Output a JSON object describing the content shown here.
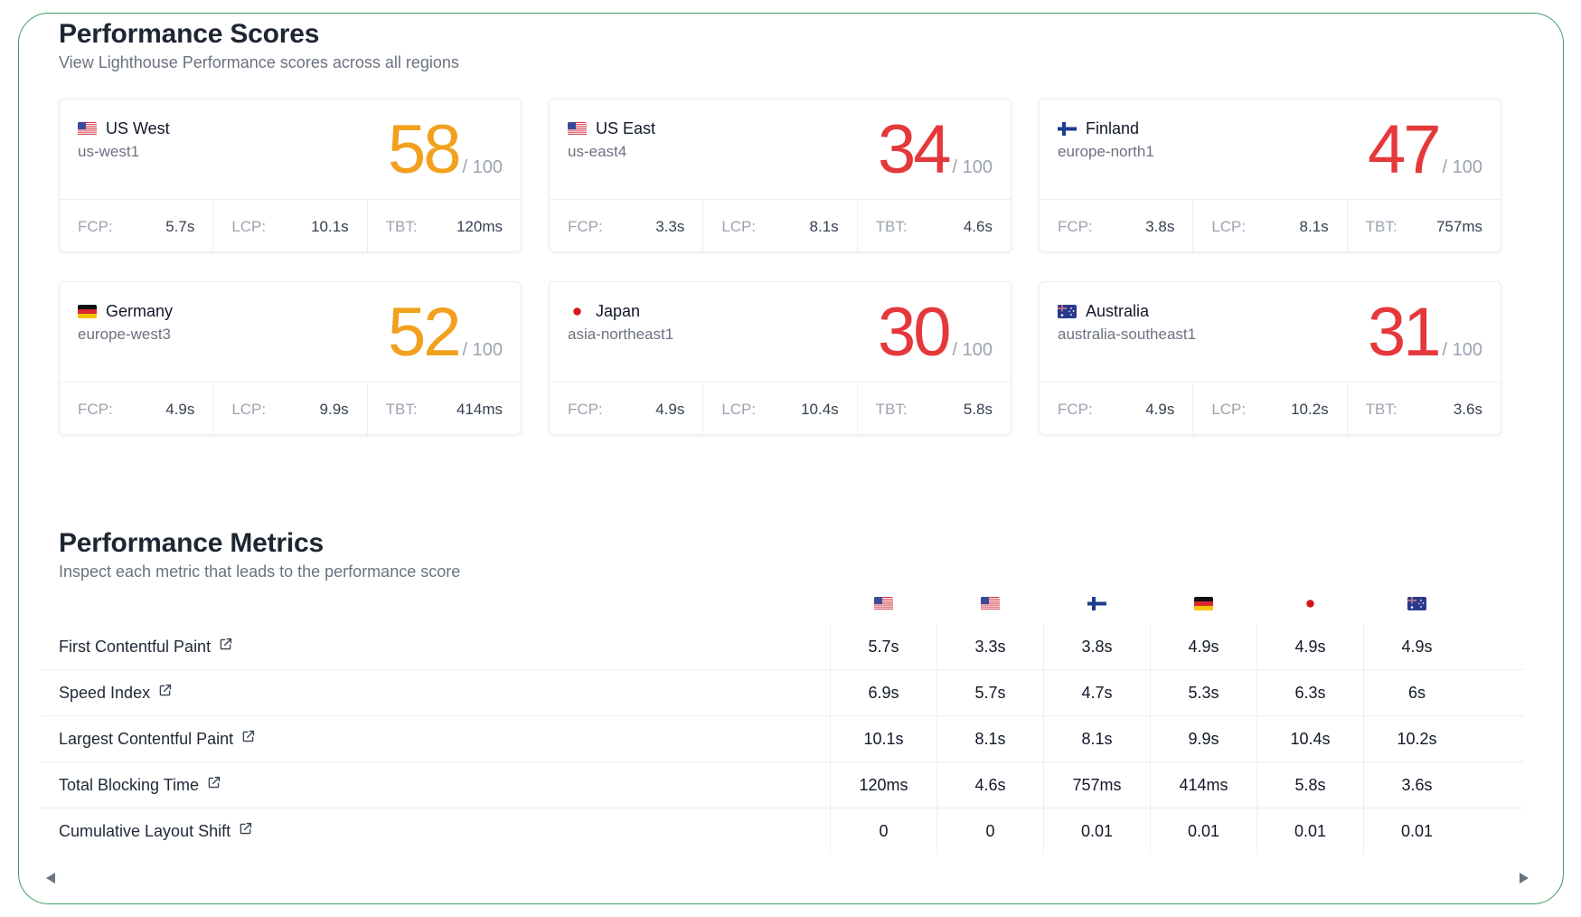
{
  "scores_section": {
    "title": "Performance Scores",
    "subtitle": "View Lighthouse Performance scores across all regions"
  },
  "score_max_label": "/ 100",
  "metric_labels": {
    "fcp": "FCP:",
    "lcp": "LCP:",
    "tbt": "TBT:"
  },
  "regions": [
    {
      "name": "US West",
      "code": "us-west1",
      "flag": "us-flag-icon",
      "score": "58",
      "score_color": "#f2a01e",
      "fcp": "5.7s",
      "lcp": "10.1s",
      "tbt": "120ms"
    },
    {
      "name": "US East",
      "code": "us-east4",
      "flag": "us-flag-icon",
      "score": "34",
      "score_color": "#e5383b",
      "fcp": "3.3s",
      "lcp": "8.1s",
      "tbt": "4.6s"
    },
    {
      "name": "Finland",
      "code": "europe-north1",
      "flag": "finland-flag-icon",
      "score": "47",
      "score_color": "#e5383b",
      "fcp": "3.8s",
      "lcp": "8.1s",
      "tbt": "757ms"
    },
    {
      "name": "Germany",
      "code": "europe-west3",
      "flag": "germany-flag-icon",
      "score": "52",
      "score_color": "#f2a01e",
      "fcp": "4.9s",
      "lcp": "9.9s",
      "tbt": "414ms"
    },
    {
      "name": "Japan",
      "code": "asia-northeast1",
      "flag": "japan-flag-icon",
      "score": "30",
      "score_color": "#e5383b",
      "fcp": "4.9s",
      "lcp": "10.4s",
      "tbt": "5.8s"
    },
    {
      "name": "Australia",
      "code": "australia-southeast1",
      "flag": "australia-flag-icon",
      "score": "31",
      "score_color": "#e5383b",
      "fcp": "4.9s",
      "lcp": "10.2s",
      "tbt": "3.6s"
    }
  ],
  "metrics_section": {
    "title": "Performance Metrics",
    "subtitle": "Inspect each metric that leads to the performance score"
  },
  "metrics_table": {
    "rows": [
      {
        "label": "First Contentful Paint",
        "values": [
          "5.7s",
          "3.3s",
          "3.8s",
          "4.9s",
          "4.9s",
          "4.9s"
        ]
      },
      {
        "label": "Speed Index",
        "values": [
          "6.9s",
          "5.7s",
          "4.7s",
          "5.3s",
          "6.3s",
          "6s"
        ]
      },
      {
        "label": "Largest Contentful Paint",
        "values": [
          "10.1s",
          "8.1s",
          "8.1s",
          "9.9s",
          "10.4s",
          "10.2s"
        ]
      },
      {
        "label": "Total Blocking Time",
        "values": [
          "120ms",
          "4.6s",
          "757ms",
          "414ms",
          "5.8s",
          "3.6s"
        ]
      },
      {
        "label": "Cumulative Layout Shift",
        "values": [
          "0",
          "0",
          "0.01",
          "0.01",
          "0.01",
          "0.01"
        ]
      }
    ]
  }
}
